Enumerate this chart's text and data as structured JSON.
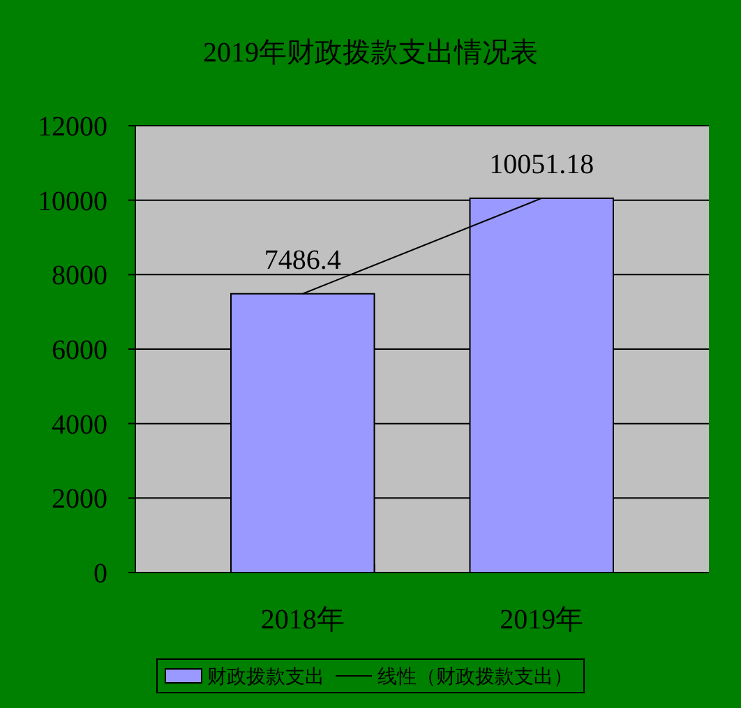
{
  "chart_data": {
    "type": "bar",
    "title": "2019年财政拨款支出情况表",
    "categories": [
      "2018年",
      "2019年"
    ],
    "series": [
      {
        "name": "财政拨款支出",
        "color": "#9999ff",
        "values": [
          7486.4,
          10051.18
        ],
        "value_labels": [
          "7486.4",
          "10051.18"
        ]
      },
      {
        "name": "线性（财政拨款支出）",
        "type": "line",
        "color": "#000000",
        "values": [
          7486.4,
          10051.18
        ]
      }
    ],
    "ylim": [
      0,
      12000
    ],
    "yticks": [
      0,
      2000,
      4000,
      6000,
      8000,
      10000,
      12000
    ],
    "grid": "y",
    "legend": "bottom",
    "marker": "none"
  }
}
